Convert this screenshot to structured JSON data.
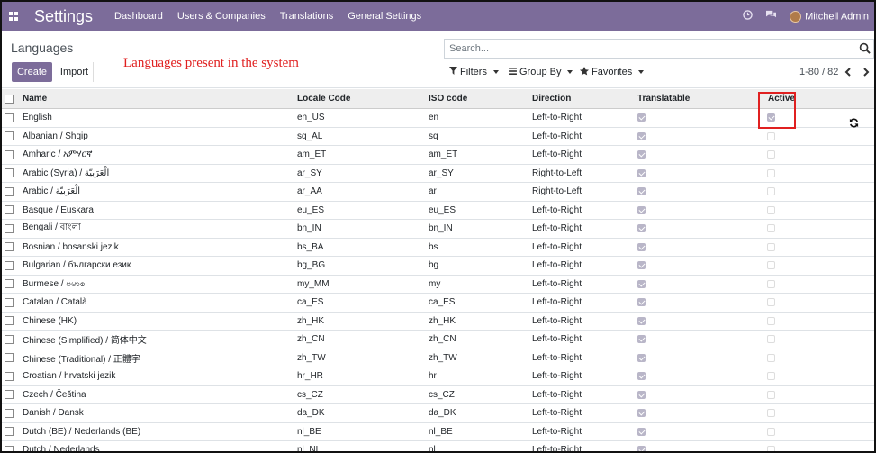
{
  "navbar": {
    "app_title": "Settings",
    "menu": [
      "Dashboard",
      "Users & Companies",
      "Translations",
      "General Settings"
    ],
    "user_name": "Mitchell Admin"
  },
  "control_panel": {
    "breadcrumb": "Languages",
    "create_label": "Create",
    "import_label": "Import",
    "annotation": "Languages present in the system",
    "search_placeholder": "Search...",
    "filters_label": "Filters",
    "group_by_label": "Group By",
    "favorites_label": "Favorites",
    "pager": "1-80 / 82"
  },
  "table": {
    "columns": [
      "Name",
      "Locale Code",
      "ISO code",
      "Direction",
      "Translatable",
      "Active"
    ],
    "rows": [
      {
        "name": "English",
        "locale": "en_US",
        "iso": "en",
        "direction": "Left-to-Right",
        "translatable": true,
        "active": true
      },
      {
        "name": "Albanian / Shqip",
        "locale": "sq_AL",
        "iso": "sq",
        "direction": "Left-to-Right",
        "translatable": true,
        "active": false
      },
      {
        "name": "Amharic / አምሃርኛ",
        "locale": "am_ET",
        "iso": "am_ET",
        "direction": "Left-to-Right",
        "translatable": true,
        "active": false
      },
      {
        "name": "Arabic (Syria) / الْعَرَبيّة",
        "locale": "ar_SY",
        "iso": "ar_SY",
        "direction": "Right-to-Left",
        "translatable": true,
        "active": false
      },
      {
        "name": "Arabic / الْعَرَبيّة",
        "locale": "ar_AA",
        "iso": "ar",
        "direction": "Right-to-Left",
        "translatable": true,
        "active": false
      },
      {
        "name": "Basque / Euskara",
        "locale": "eu_ES",
        "iso": "eu_ES",
        "direction": "Left-to-Right",
        "translatable": true,
        "active": false
      },
      {
        "name": "Bengali / বাংলা",
        "locale": "bn_IN",
        "iso": "bn_IN",
        "direction": "Left-to-Right",
        "translatable": true,
        "active": false
      },
      {
        "name": "Bosnian / bosanski jezik",
        "locale": "bs_BA",
        "iso": "bs",
        "direction": "Left-to-Right",
        "translatable": true,
        "active": false
      },
      {
        "name": "Bulgarian / български език",
        "locale": "bg_BG",
        "iso": "bg",
        "direction": "Left-to-Right",
        "translatable": true,
        "active": false
      },
      {
        "name": "Burmese / ဗမာစ",
        "locale": "my_MM",
        "iso": "my",
        "direction": "Left-to-Right",
        "translatable": true,
        "active": false
      },
      {
        "name": "Catalan / Català",
        "locale": "ca_ES",
        "iso": "ca_ES",
        "direction": "Left-to-Right",
        "translatable": true,
        "active": false
      },
      {
        "name": "Chinese (HK)",
        "locale": "zh_HK",
        "iso": "zh_HK",
        "direction": "Left-to-Right",
        "translatable": true,
        "active": false
      },
      {
        "name": "Chinese (Simplified) / 简体中文",
        "locale": "zh_CN",
        "iso": "zh_CN",
        "direction": "Left-to-Right",
        "translatable": true,
        "active": false
      },
      {
        "name": "Chinese (Traditional) / 正體字",
        "locale": "zh_TW",
        "iso": "zh_TW",
        "direction": "Left-to-Right",
        "translatable": true,
        "active": false
      },
      {
        "name": "Croatian / hrvatski jezik",
        "locale": "hr_HR",
        "iso": "hr",
        "direction": "Left-to-Right",
        "translatable": true,
        "active": false
      },
      {
        "name": "Czech / Čeština",
        "locale": "cs_CZ",
        "iso": "cs_CZ",
        "direction": "Left-to-Right",
        "translatable": true,
        "active": false
      },
      {
        "name": "Danish / Dansk",
        "locale": "da_DK",
        "iso": "da_DK",
        "direction": "Left-to-Right",
        "translatable": true,
        "active": false
      },
      {
        "name": "Dutch (BE) / Nederlands (BE)",
        "locale": "nl_BE",
        "iso": "nl_BE",
        "direction": "Left-to-Right",
        "translatable": true,
        "active": false
      },
      {
        "name": "Dutch / Nederlands",
        "locale": "nl_NL",
        "iso": "nl",
        "direction": "Left-to-Right",
        "translatable": true,
        "active": false
      }
    ]
  }
}
